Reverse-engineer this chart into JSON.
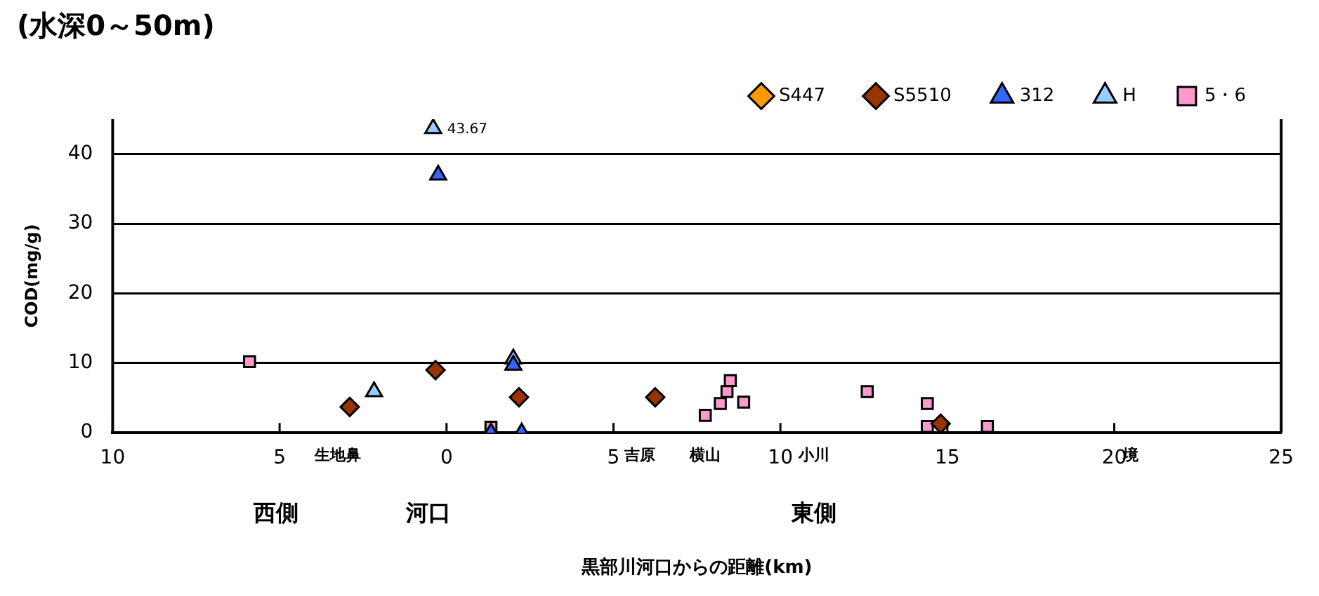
{
  "chart_data": {
    "type": "scatter",
    "title": "(水深0～50m)",
    "xlabel": "黒部川河口からの距離(km)",
    "ylabel": "COD(mg/g)",
    "xlim": [
      -10,
      25
    ],
    "xticks": [
      {
        "value": -10,
        "label": "10"
      },
      {
        "value": -5,
        "label": "5"
      },
      {
        "value": -3.25,
        "label": "生地鼻"
      },
      0,
      5,
      {
        "value": 5.8,
        "label": "吉原"
      },
      {
        "value": 7.75,
        "label": "横山"
      },
      10,
      {
        "value": 11,
        "label": "小川"
      },
      15,
      20,
      {
        "value": 20.5,
        "label": "境"
      },
      25
    ],
    "ylim": [
      0,
      45
    ],
    "yticks": [
      0,
      10,
      20,
      30,
      40
    ],
    "grid": "y",
    "legend": "top right",
    "annotations": [
      "西側",
      "河口",
      "東側"
    ],
    "series": [
      {
        "name": "S447",
        "color": "#ff9900",
        "marker": "diamond"
      },
      {
        "name": "S5510",
        "color": "#993300",
        "marker": "diamond",
        "x": [
          -2.9,
          -0.33,
          2.17,
          6.25,
          14.8
        ],
        "values": [
          3.7,
          9,
          5.1,
          5.1,
          1.3
        ]
      },
      {
        "name": "312",
        "color": "#3366ff",
        "marker": "triangle",
        "x": [
          -0.25,
          2.0,
          1.33,
          2.25
        ],
        "values": [
          37,
          9.7,
          0,
          0
        ]
      },
      {
        "name": "H",
        "color": "#99ccff",
        "marker": "triangle",
        "x": [
          -0.4,
          -2.17,
          2.0
        ],
        "values": [
          43.67,
          5.9,
          10.6
        ],
        "value_labels": [
          "43.67",
          null,
          null
        ]
      },
      {
        "name": "5・6",
        "color": "#ff99cc",
        "marker": "square",
        "x": [
          -5.9,
          1.33,
          8.5,
          8.4,
          8.2,
          7.75,
          8.9,
          12.6,
          14.4,
          14.4,
          16.2
        ],
        "values": [
          10.2,
          0.8,
          7.5,
          5.9,
          4.2,
          2.5,
          4.4,
          5.9,
          4.2,
          0.9,
          0.9
        ]
      }
    ]
  }
}
